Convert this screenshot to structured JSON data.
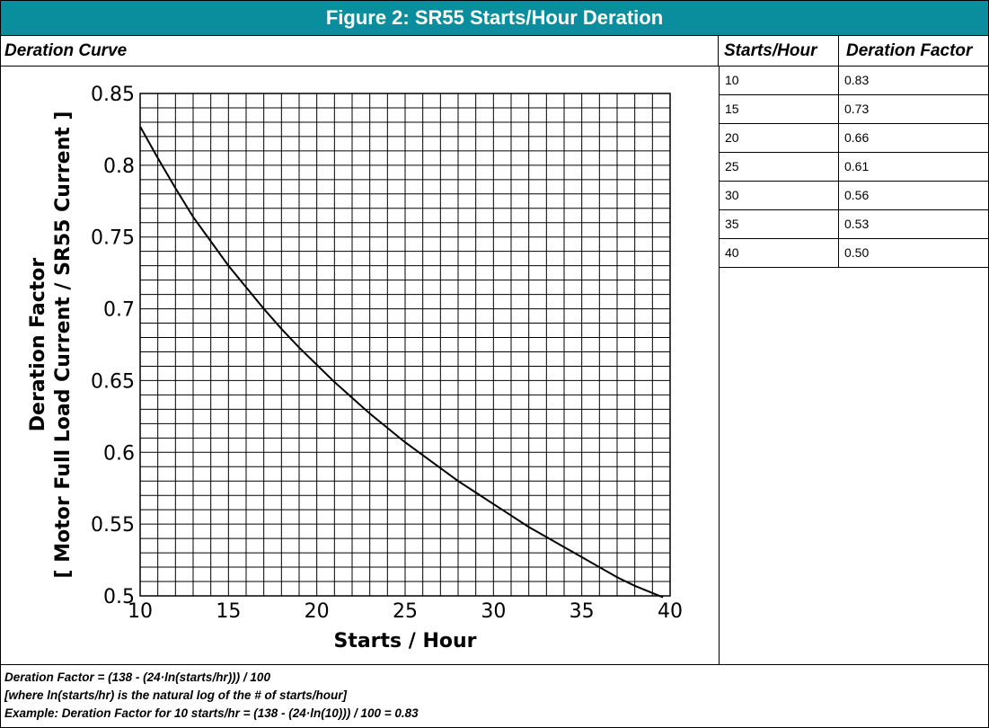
{
  "title": "Figure 2:  SR55 Starts/Hour Deration",
  "headers": {
    "curve": "Deration Curve",
    "starts": "Starts/Hour",
    "factor": "Deration Factor"
  },
  "table": {
    "rows": [
      {
        "starts": "10",
        "factor": "0.83"
      },
      {
        "starts": "15",
        "factor": "0.73"
      },
      {
        "starts": "20",
        "factor": "0.66"
      },
      {
        "starts": "25",
        "factor": "0.61"
      },
      {
        "starts": "30",
        "factor": "0.56"
      },
      {
        "starts": "35",
        "factor": "0.53"
      },
      {
        "starts": "40",
        "factor": "0.50"
      }
    ]
  },
  "footer": {
    "line1": "Deration Factor = (138 - (24·ln(starts/hr))) / 100",
    "line2": "[where ln(starts/hr) is the natural log of the # of starts/hour]",
    "line3": "Example: Deration Factor for 10 starts/hr = (138 - (24·ln(10))) / 100 = 0.83"
  },
  "chart_data": {
    "type": "line",
    "xlabel": "Starts / Hour",
    "ylabel_line1": "Deration Factor",
    "ylabel_line2": "[ Motor Full Load Current / SR55 Current ]",
    "xlim": [
      10,
      40
    ],
    "ylim": [
      0.5,
      0.85
    ],
    "xticks": [
      "10",
      "15",
      "20",
      "25",
      "30",
      "35",
      "40"
    ],
    "yticks": [
      "0.85",
      "0.8",
      "0.75",
      "0.7",
      "0.65",
      "0.6",
      "0.55",
      "0.5"
    ],
    "grid": true,
    "x": [
      10,
      11,
      12,
      13,
      14,
      15,
      16,
      17,
      18,
      19,
      20,
      21,
      22,
      23,
      24,
      25,
      26,
      27,
      28,
      29,
      30,
      31,
      32,
      33,
      34,
      35,
      36,
      37,
      38,
      39,
      39.6
    ],
    "y": [
      0.827,
      0.805,
      0.784,
      0.764,
      0.747,
      0.73,
      0.715,
      0.7,
      0.686,
      0.673,
      0.661,
      0.649,
      0.638,
      0.627,
      0.617,
      0.607,
      0.598,
      0.589,
      0.58,
      0.572,
      0.564,
      0.556,
      0.548,
      0.541,
      0.534,
      0.527,
      0.52,
      0.513,
      0.507,
      0.502,
      0.499
    ],
    "line_color": "#000000"
  }
}
